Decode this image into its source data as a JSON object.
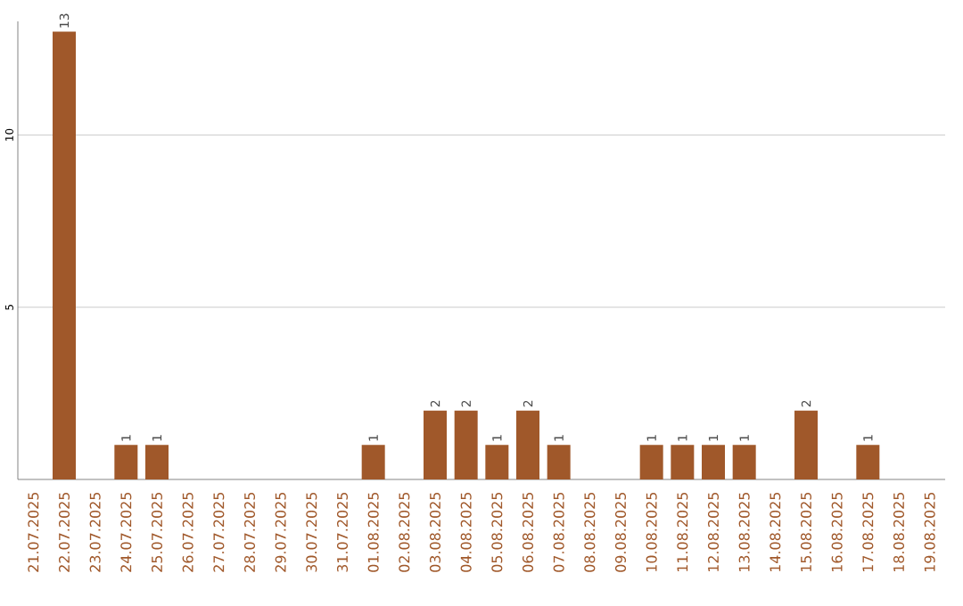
{
  "chart_data": {
    "type": "bar",
    "categories": [
      "21.07.2025",
      "22.07.2025",
      "23.07.2025",
      "24.07.2025",
      "25.07.2025",
      "26.07.2025",
      "27.07.2025",
      "28.07.2025",
      "29.07.2025",
      "30.07.2025",
      "31.07.2025",
      "01.08.2025",
      "02.08.2025",
      "03.08.2025",
      "04.08.2025",
      "05.08.2025",
      "06.08.2025",
      "07.08.2025",
      "08.08.2025",
      "09.08.2025",
      "10.08.2025",
      "11.08.2025",
      "12.08.2025",
      "13.08.2025",
      "14.08.2025",
      "15.08.2025",
      "16.08.2025",
      "17.08.2025",
      "18.08.2025",
      "19.08.2025"
    ],
    "values": [
      0,
      13,
      0,
      1,
      1,
      0,
      0,
      0,
      0,
      0,
      0,
      1,
      0,
      2,
      2,
      1,
      2,
      1,
      0,
      0,
      1,
      1,
      1,
      1,
      0,
      2,
      0,
      1,
      0,
      0
    ],
    "value_labels": [
      null,
      "13",
      null,
      "1",
      "1",
      null,
      null,
      null,
      null,
      null,
      null,
      "1",
      null,
      "2",
      "2",
      "1",
      "2",
      "1",
      null,
      null,
      "1",
      "1",
      "1",
      "1",
      null,
      "2",
      null,
      "1",
      null,
      null
    ],
    "color": "#a0582a",
    "ylim": [
      0,
      13.3
    ],
    "yticks": [
      5,
      10
    ],
    "grid": "y"
  }
}
